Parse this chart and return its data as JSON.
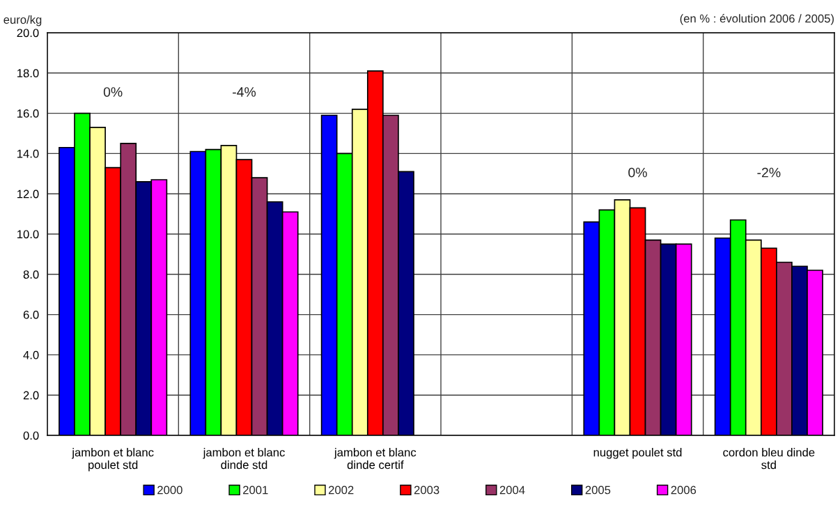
{
  "chart_data": {
    "type": "bar",
    "ylabel": "euro/kg",
    "categories": [
      "jambon et blanc\npoulet std",
      "jambon et blanc\ndinde std",
      "jambon et blanc\ndinde certif",
      null,
      "nugget poulet std",
      "cordon bleu dinde\nstd"
    ],
    "series": [
      {
        "name": "2000",
        "color": "#0000ff",
        "values": [
          14.3,
          14.1,
          15.9,
          null,
          10.6,
          9.8
        ]
      },
      {
        "name": "2001",
        "color": "#00ff00",
        "values": [
          16.0,
          14.2,
          14.0,
          null,
          11.2,
          10.7
        ]
      },
      {
        "name": "2002",
        "color": "#ffff99",
        "values": [
          15.3,
          14.4,
          16.2,
          null,
          11.7,
          9.7
        ]
      },
      {
        "name": "2003",
        "color": "#ff0000",
        "values": [
          13.3,
          13.7,
          18.1,
          null,
          11.3,
          9.3
        ]
      },
      {
        "name": "2004",
        "color": "#993366",
        "values": [
          14.5,
          12.8,
          15.9,
          null,
          9.7,
          8.6
        ]
      },
      {
        "name": "2005",
        "color": "#000080",
        "values": [
          12.6,
          11.6,
          13.1,
          null,
          9.5,
          8.4
        ]
      },
      {
        "name": "2006",
        "color": "#ff00ff",
        "values": [
          12.7,
          11.1,
          null,
          null,
          9.5,
          8.2
        ]
      }
    ],
    "ylim": [
      0,
      20
    ],
    "yticks": [
      {
        "value": 0,
        "label": "0.0"
      },
      {
        "value": 2,
        "label": "2.0"
      },
      {
        "value": 4,
        "label": "4.0"
      },
      {
        "value": 6,
        "label": "6.0"
      },
      {
        "value": 8,
        "label": "8.0"
      },
      {
        "value": 10,
        "label": "10.0"
      },
      {
        "value": 12,
        "label": "12.0"
      },
      {
        "value": 14,
        "label": "14.0"
      },
      {
        "value": 16,
        "label": "16.0"
      },
      {
        "value": 18,
        "label": "18.0"
      },
      {
        "value": 20,
        "label": "20.0"
      }
    ],
    "grid": true,
    "legend": "bottom",
    "annotations": [
      "0%",
      "-4%",
      "0%",
      "-2%",
      "(en % : évolution 2006 / 2005)"
    ]
  }
}
